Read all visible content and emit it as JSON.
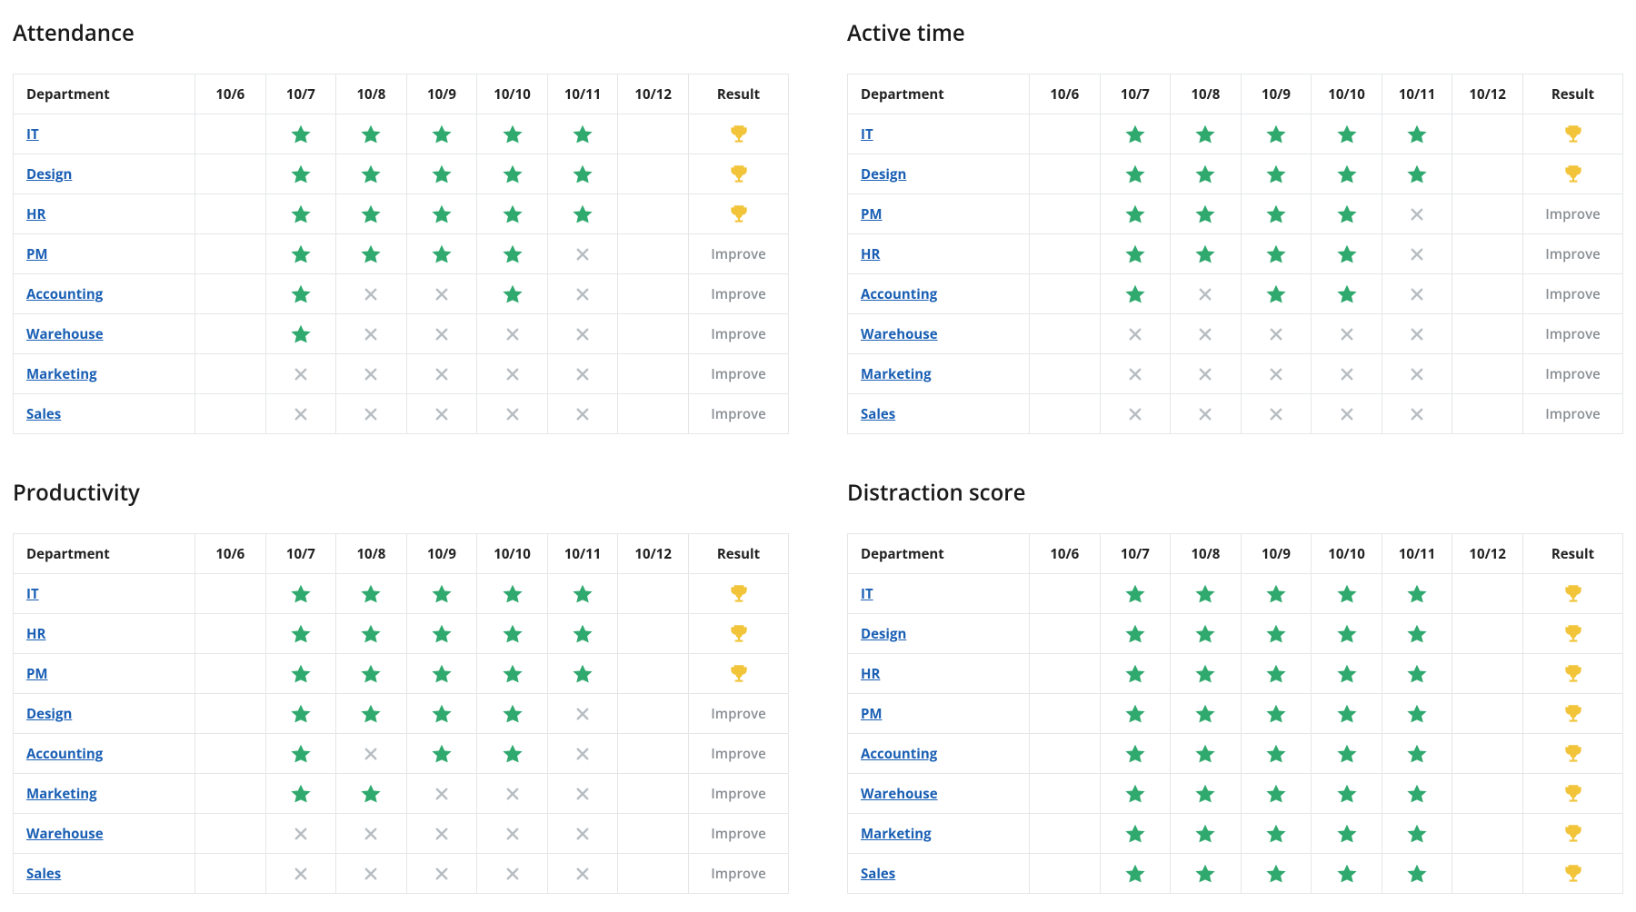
{
  "colors": {
    "star": "#2fa96e",
    "cross": "#b8bdc2",
    "trophy": "#f2c43a",
    "link": "#1a5fb4",
    "improve_text": "#8a8f94",
    "border": "#e4e6e8",
    "heading": "#1a1a1a",
    "background": "#ffffff"
  },
  "labels": {
    "department": "Department",
    "result": "Result",
    "improve": "Improve"
  },
  "columns": [
    "10/6",
    "10/7",
    "10/8",
    "10/9",
    "10/10",
    "10/11",
    "10/12"
  ],
  "panels": [
    {
      "key": "attendance",
      "title": "Attendance",
      "rows": [
        {
          "dept": "IT",
          "cells": [
            "",
            "star",
            "star",
            "star",
            "star",
            "star",
            ""
          ],
          "result": "trophy"
        },
        {
          "dept": "Design",
          "cells": [
            "",
            "star",
            "star",
            "star",
            "star",
            "star",
            ""
          ],
          "result": "trophy"
        },
        {
          "dept": "HR",
          "cells": [
            "",
            "star",
            "star",
            "star",
            "star",
            "star",
            ""
          ],
          "result": "trophy"
        },
        {
          "dept": "PM",
          "cells": [
            "",
            "star",
            "star",
            "star",
            "star",
            "cross",
            ""
          ],
          "result": "improve"
        },
        {
          "dept": "Accounting",
          "cells": [
            "",
            "star",
            "cross",
            "cross",
            "star",
            "cross",
            ""
          ],
          "result": "improve"
        },
        {
          "dept": "Warehouse",
          "cells": [
            "",
            "star",
            "cross",
            "cross",
            "cross",
            "cross",
            ""
          ],
          "result": "improve"
        },
        {
          "dept": "Marketing",
          "cells": [
            "",
            "cross",
            "cross",
            "cross",
            "cross",
            "cross",
            ""
          ],
          "result": "improve"
        },
        {
          "dept": "Sales",
          "cells": [
            "",
            "cross",
            "cross",
            "cross",
            "cross",
            "cross",
            ""
          ],
          "result": "improve"
        }
      ]
    },
    {
      "key": "active_time",
      "title": "Active time",
      "rows": [
        {
          "dept": "IT",
          "cells": [
            "",
            "star",
            "star",
            "star",
            "star",
            "star",
            ""
          ],
          "result": "trophy"
        },
        {
          "dept": "Design",
          "cells": [
            "",
            "star",
            "star",
            "star",
            "star",
            "star",
            ""
          ],
          "result": "trophy"
        },
        {
          "dept": "PM",
          "cells": [
            "",
            "star",
            "star",
            "star",
            "star",
            "cross",
            ""
          ],
          "result": "improve"
        },
        {
          "dept": "HR",
          "cells": [
            "",
            "star",
            "star",
            "star",
            "star",
            "cross",
            ""
          ],
          "result": "improve"
        },
        {
          "dept": "Accounting",
          "cells": [
            "",
            "star",
            "cross",
            "star",
            "star",
            "cross",
            ""
          ],
          "result": "improve"
        },
        {
          "dept": "Warehouse",
          "cells": [
            "",
            "cross",
            "cross",
            "cross",
            "cross",
            "cross",
            ""
          ],
          "result": "improve"
        },
        {
          "dept": "Marketing",
          "cells": [
            "",
            "cross",
            "cross",
            "cross",
            "cross",
            "cross",
            ""
          ],
          "result": "improve"
        },
        {
          "dept": "Sales",
          "cells": [
            "",
            "cross",
            "cross",
            "cross",
            "cross",
            "cross",
            ""
          ],
          "result": "improve"
        }
      ]
    },
    {
      "key": "productivity",
      "title": "Productivity",
      "rows": [
        {
          "dept": "IT",
          "cells": [
            "",
            "star",
            "star",
            "star",
            "star",
            "star",
            ""
          ],
          "result": "trophy"
        },
        {
          "dept": "HR",
          "cells": [
            "",
            "star",
            "star",
            "star",
            "star",
            "star",
            ""
          ],
          "result": "trophy"
        },
        {
          "dept": "PM",
          "cells": [
            "",
            "star",
            "star",
            "star",
            "star",
            "star",
            ""
          ],
          "result": "trophy"
        },
        {
          "dept": "Design",
          "cells": [
            "",
            "star",
            "star",
            "star",
            "star",
            "cross",
            ""
          ],
          "result": "improve"
        },
        {
          "dept": "Accounting",
          "cells": [
            "",
            "star",
            "cross",
            "star",
            "star",
            "cross",
            ""
          ],
          "result": "improve"
        },
        {
          "dept": "Marketing",
          "cells": [
            "",
            "star",
            "star",
            "cross",
            "cross",
            "cross",
            ""
          ],
          "result": "improve"
        },
        {
          "dept": "Warehouse",
          "cells": [
            "",
            "cross",
            "cross",
            "cross",
            "cross",
            "cross",
            ""
          ],
          "result": "improve"
        },
        {
          "dept": "Sales",
          "cells": [
            "",
            "cross",
            "cross",
            "cross",
            "cross",
            "cross",
            ""
          ],
          "result": "improve"
        }
      ]
    },
    {
      "key": "distraction_score",
      "title": "Distraction score",
      "rows": [
        {
          "dept": "IT",
          "cells": [
            "",
            "star",
            "star",
            "star",
            "star",
            "star",
            ""
          ],
          "result": "trophy"
        },
        {
          "dept": "Design",
          "cells": [
            "",
            "star",
            "star",
            "star",
            "star",
            "star",
            ""
          ],
          "result": "trophy"
        },
        {
          "dept": "HR",
          "cells": [
            "",
            "star",
            "star",
            "star",
            "star",
            "star",
            ""
          ],
          "result": "trophy"
        },
        {
          "dept": "PM",
          "cells": [
            "",
            "star",
            "star",
            "star",
            "star",
            "star",
            ""
          ],
          "result": "trophy"
        },
        {
          "dept": "Accounting",
          "cells": [
            "",
            "star",
            "star",
            "star",
            "star",
            "star",
            ""
          ],
          "result": "trophy"
        },
        {
          "dept": "Warehouse",
          "cells": [
            "",
            "star",
            "star",
            "star",
            "star",
            "star",
            ""
          ],
          "result": "trophy"
        },
        {
          "dept": "Marketing",
          "cells": [
            "",
            "star",
            "star",
            "star",
            "star",
            "star",
            ""
          ],
          "result": "trophy"
        },
        {
          "dept": "Sales",
          "cells": [
            "",
            "star",
            "star",
            "star",
            "star",
            "star",
            ""
          ],
          "result": "trophy"
        }
      ]
    }
  ]
}
